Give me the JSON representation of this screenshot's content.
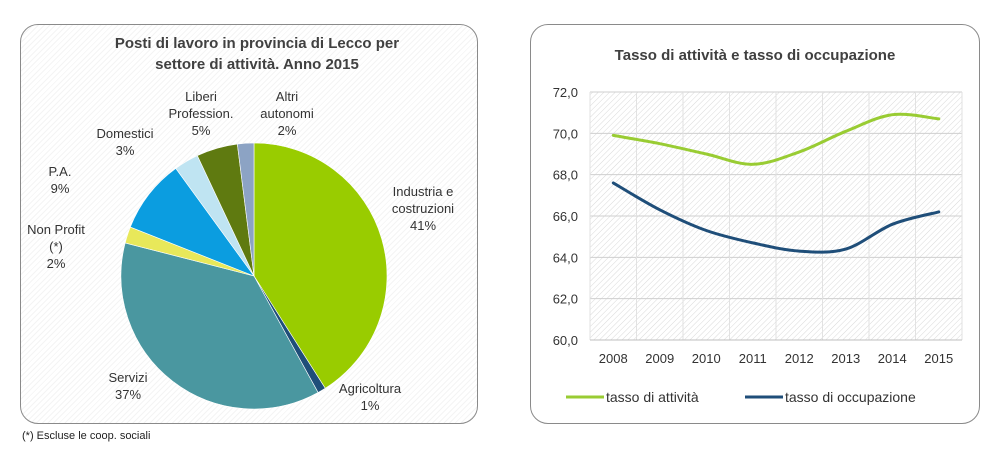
{
  "footnote": "(*) Escluse le coop. sociali",
  "chart_data": [
    {
      "type": "pie",
      "title_lines": [
        "Posti di lavoro in provincia di Lecco per",
        "settore di attività. Anno 2015"
      ],
      "slices": [
        {
          "label_lines": [
            "Industria e",
            "costruzioni"
          ],
          "pct_label": "41%",
          "value": 41,
          "color": "#99cc00"
        },
        {
          "label_lines": [
            "Agricoltura"
          ],
          "pct_label": "1%",
          "value": 1,
          "color": "#1f4e79"
        },
        {
          "label_lines": [
            "Servizi"
          ],
          "pct_label": "37%",
          "value": 37,
          "color": "#4a97a0"
        },
        {
          "label_lines": [
            "Non Profit",
            "(*)"
          ],
          "pct_label": "2%",
          "value": 2,
          "color": "#e8e85a"
        },
        {
          "label_lines": [
            "P.A."
          ],
          "pct_label": "9%",
          "value": 9,
          "color": "#0b9de0"
        },
        {
          "label_lines": [
            "Domestici"
          ],
          "pct_label": "3%",
          "value": 3,
          "color": "#bfe4f2"
        },
        {
          "label_lines": [
            "Liberi",
            "Profession."
          ],
          "pct_label": "5%",
          "value": 5,
          "color": "#5f7a10"
        },
        {
          "label_lines": [
            "Altri",
            "autonomi"
          ],
          "pct_label": "2%",
          "value": 2,
          "color": "#8ca3c4"
        }
      ]
    },
    {
      "type": "line",
      "title": "Tasso di attività e tasso di occupazione",
      "categories": [
        "2008",
        "2009",
        "2010",
        "2011",
        "2012",
        "2013",
        "2014",
        "2015"
      ],
      "ylim": [
        60,
        72
      ],
      "yticks": [
        "60,0",
        "62,0",
        "64,0",
        "66,0",
        "68,0",
        "70,0",
        "72,0"
      ],
      "series": [
        {
          "name": "tasso di attività",
          "color": "#99cc33",
          "values": [
            69.9,
            69.5,
            69.0,
            68.5,
            69.1,
            70.1,
            70.9,
            70.7
          ]
        },
        {
          "name": "tasso di occupazione",
          "color": "#1f4e79",
          "values": [
            67.6,
            66.3,
            65.3,
            64.7,
            64.3,
            64.4,
            65.6,
            66.2
          ]
        }
      ]
    }
  ]
}
